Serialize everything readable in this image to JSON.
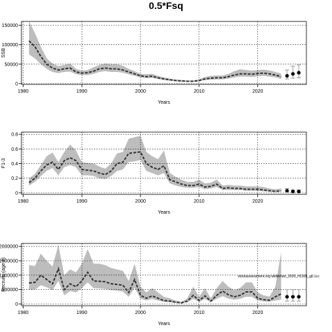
{
  "figure": {
    "title": "0.5*Fsq",
    "annotation": "stockassessment.org wkiberian_2020_rf1920_g8.1cc"
  },
  "chart_data": [
    {
      "type": "area",
      "name": "ssb",
      "xlabel": "Years",
      "ylabel": "SSB",
      "xlim": [
        1979.7,
        2028.3
      ],
      "ylim": [
        -2000,
        160000
      ],
      "xticks": [
        1980,
        1990,
        2000,
        2010,
        2020
      ],
      "yticks": [
        0,
        50000,
        100000,
        150000
      ],
      "grid": true,
      "x": [
        1981,
        1982,
        1983,
        1984,
        1985,
        1986,
        1987,
        1988,
        1989,
        1990,
        1991,
        1992,
        1993,
        1994,
        1995,
        1996,
        1997,
        1998,
        1999,
        2000,
        2001,
        2002,
        2003,
        2004,
        2005,
        2006,
        2007,
        2008,
        2009,
        2010,
        2011,
        2012,
        2013,
        2014,
        2015,
        2016,
        2017,
        2018,
        2019,
        2020,
        2021,
        2022,
        2023,
        2024
      ],
      "median": [
        110000,
        95000,
        70000,
        50000,
        40000,
        35000,
        38000,
        40000,
        30000,
        27000,
        28000,
        32000,
        38000,
        40000,
        38000,
        38000,
        35000,
        30000,
        25000,
        20000,
        18000,
        19000,
        15000,
        12000,
        10000,
        8000,
        7000,
        6000,
        6000,
        8000,
        12000,
        14000,
        15000,
        15000,
        18000,
        22000,
        25000,
        25000,
        24000,
        26000,
        27000,
        25000,
        22000,
        18000
      ],
      "low": [
        75000,
        65000,
        50000,
        38000,
        30000,
        27000,
        30000,
        31000,
        24000,
        22000,
        22000,
        25000,
        30000,
        32000,
        30000,
        30000,
        28000,
        24000,
        20000,
        16000,
        14000,
        15000,
        12000,
        9000,
        7500,
        6000,
        5000,
        4500,
        4500,
        6000,
        9000,
        10000,
        11000,
        11000,
        13000,
        16000,
        18000,
        18000,
        17000,
        19000,
        20000,
        18000,
        16000,
        12000
      ],
      "high": [
        160000,
        130000,
        95000,
        65000,
        52000,
        45000,
        48000,
        52000,
        38000,
        33000,
        35000,
        42000,
        48000,
        52000,
        50000,
        50000,
        46000,
        38000,
        32000,
        25000,
        24000,
        25000,
        20000,
        16000,
        13000,
        10500,
        9000,
        8000,
        8000,
        11000,
        17000,
        20000,
        21000,
        21000,
        25000,
        32000,
        37000,
        35000,
        33000,
        35000,
        36000,
        34000,
        30000,
        26000
      ],
      "forecast": {
        "x": [
          2025,
          2026,
          2027
        ],
        "values": [
          20000,
          25000,
          28000
        ],
        "low": [
          12000,
          14000,
          15000
        ],
        "high": [
          35000,
          45000,
          48000
        ]
      }
    },
    {
      "type": "area",
      "name": "fbar",
      "xlabel": "Years",
      "ylabel": "F1-3",
      "xlim": [
        1979.7,
        2028.3
      ],
      "ylim": [
        -0.02,
        0.83
      ],
      "xticks": [
        1980,
        1990,
        2000,
        2010,
        2020
      ],
      "yticks": [
        0.0,
        0.2,
        0.4,
        0.6,
        0.8
      ],
      "grid": true,
      "x": [
        1981,
        1982,
        1983,
        1984,
        1985,
        1986,
        1987,
        1988,
        1989,
        1990,
        1991,
        1992,
        1993,
        1994,
        1995,
        1996,
        1997,
        1998,
        1999,
        2000,
        2001,
        2002,
        2003,
        2004,
        2005,
        2006,
        2007,
        2008,
        2009,
        2010,
        2011,
        2012,
        2013,
        2014,
        2015,
        2016,
        2017,
        2018,
        2019,
        2020,
        2021,
        2022,
        2023,
        2024
      ],
      "median": [
        0.14,
        0.2,
        0.3,
        0.38,
        0.42,
        0.32,
        0.44,
        0.48,
        0.44,
        0.32,
        0.31,
        0.3,
        0.27,
        0.25,
        0.3,
        0.4,
        0.42,
        0.54,
        0.55,
        0.56,
        0.4,
        0.35,
        0.32,
        0.37,
        0.18,
        0.15,
        0.12,
        0.1,
        0.1,
        0.12,
        0.08,
        0.09,
        0.12,
        0.06,
        0.07,
        0.06,
        0.06,
        0.05,
        0.05,
        0.05,
        0.04,
        0.03,
        0.02,
        0.03
      ],
      "low": [
        0.1,
        0.15,
        0.23,
        0.3,
        0.34,
        0.24,
        0.35,
        0.38,
        0.35,
        0.24,
        0.24,
        0.23,
        0.2,
        0.19,
        0.23,
        0.3,
        0.32,
        0.42,
        0.43,
        0.45,
        0.3,
        0.27,
        0.24,
        0.27,
        0.13,
        0.1,
        0.08,
        0.07,
        0.07,
        0.08,
        0.05,
        0.06,
        0.08,
        0.04,
        0.04,
        0.04,
        0.04,
        0.03,
        0.03,
        0.03,
        0.02,
        0.015,
        0.01,
        0.015
      ],
      "high": [
        0.2,
        0.26,
        0.38,
        0.5,
        0.55,
        0.42,
        0.56,
        0.66,
        0.58,
        0.42,
        0.41,
        0.4,
        0.36,
        0.33,
        0.4,
        0.54,
        0.56,
        0.74,
        0.76,
        0.78,
        0.56,
        0.5,
        0.46,
        0.58,
        0.27,
        0.22,
        0.18,
        0.15,
        0.15,
        0.18,
        0.13,
        0.14,
        0.18,
        0.1,
        0.11,
        0.1,
        0.1,
        0.09,
        0.09,
        0.09,
        0.08,
        0.06,
        0.05,
        0.06
      ],
      "forecast": {
        "x": [
          2025,
          2026,
          2027
        ],
        "values": [
          0.03,
          0.02,
          0.02
        ],
        "low": [
          0.015,
          0.01,
          0.01
        ],
        "high": [
          0.06,
          0.04,
          0.04
        ]
      }
    },
    {
      "type": "area",
      "name": "recruitment",
      "xlabel": "Years",
      "ylabel": "Recruits (age 0)",
      "xlim": [
        1979.7,
        2028.3
      ],
      "ylim": [
        -60000,
        2100000
      ],
      "xticks": [
        1980,
        1990,
        2000,
        2010,
        2020
      ],
      "yticks": [
        0,
        500000,
        1000000,
        1500000,
        2000000
      ],
      "grid": true,
      "x": [
        1981,
        1982,
        1983,
        1984,
        1985,
        1986,
        1987,
        1988,
        1989,
        1990,
        1991,
        1992,
        1993,
        1994,
        1995,
        1996,
        1997,
        1998,
        1999,
        2000,
        2001,
        2002,
        2003,
        2004,
        2005,
        2006,
        2007,
        2008,
        2009,
        2010,
        2011,
        2012,
        2013,
        2014,
        2015,
        2016,
        2017,
        2018,
        2019,
        2020,
        2021,
        2022,
        2023,
        2024
      ],
      "median": [
        730000,
        750000,
        1000000,
        850000,
        700000,
        1220000,
        500000,
        700000,
        600000,
        800000,
        1100000,
        800000,
        790000,
        770000,
        700000,
        680000,
        650000,
        400000,
        850000,
        300000,
        200000,
        280000,
        200000,
        120000,
        100000,
        60000,
        40000,
        100000,
        300000,
        120000,
        280000,
        100000,
        300000,
        450000,
        320000,
        250000,
        300000,
        420000,
        420000,
        200000,
        150000,
        130000,
        250000,
        350000
      ],
      "low": [
        500000,
        500000,
        650000,
        580000,
        480000,
        800000,
        300000,
        450000,
        400000,
        550000,
        750000,
        550000,
        540000,
        520000,
        480000,
        460000,
        430000,
        250000,
        560000,
        190000,
        120000,
        170000,
        120000,
        70000,
        60000,
        35000,
        25000,
        60000,
        180000,
        70000,
        170000,
        60000,
        180000,
        270000,
        190000,
        150000,
        180000,
        250000,
        250000,
        120000,
        90000,
        80000,
        120000,
        150000
      ],
      "high": [
        1350000,
        1320000,
        1750000,
        1500000,
        1300000,
        2050000,
        1000000,
        1200000,
        1100000,
        1400000,
        1900000,
        1400000,
        1400000,
        1350000,
        1250000,
        1200000,
        1150000,
        800000,
        1400000,
        600000,
        400000,
        550000,
        400000,
        250000,
        200000,
        120000,
        80000,
        200000,
        600000,
        250000,
        550000,
        200000,
        550000,
        800000,
        600000,
        480000,
        560000,
        750000,
        750000,
        400000,
        300000,
        260000,
        600000,
        1800000
      ],
      "forecast": {
        "x": [
          2025,
          2026,
          2027
        ],
        "values": [
          250000,
          250000,
          250000
        ],
        "low": [
          100000,
          100000,
          100000
        ],
        "high": [
          500000,
          500000,
          500000
        ]
      }
    }
  ]
}
